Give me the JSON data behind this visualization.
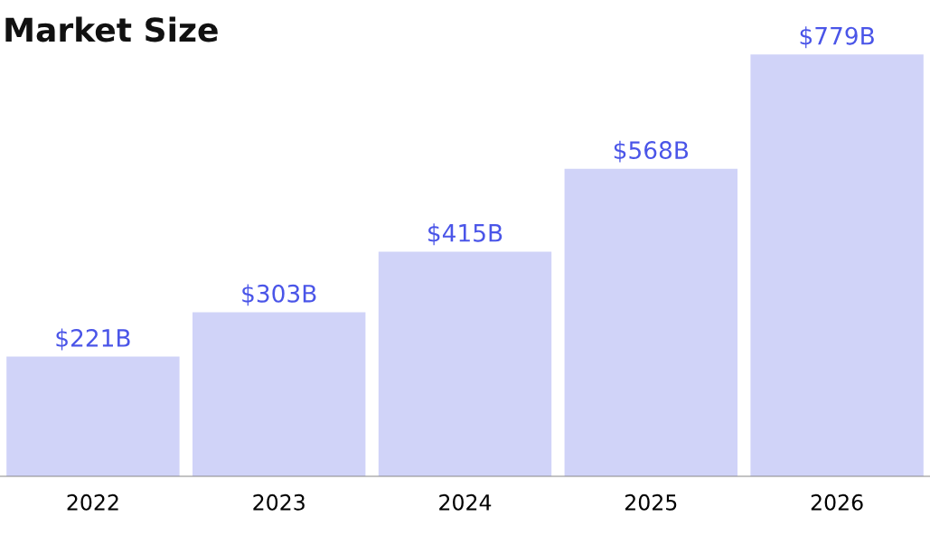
{
  "chart_data": {
    "type": "bar",
    "title": "Market Size",
    "categories": [
      "2022",
      "2023",
      "2024",
      "2025",
      "2026"
    ],
    "values": [
      221,
      303,
      415,
      568,
      779
    ],
    "value_labels": [
      "$221B",
      "$303B",
      "$415B",
      "$568B",
      "$779B"
    ],
    "color": "#d0d3f8",
    "grid": false,
    "legend": false
  }
}
